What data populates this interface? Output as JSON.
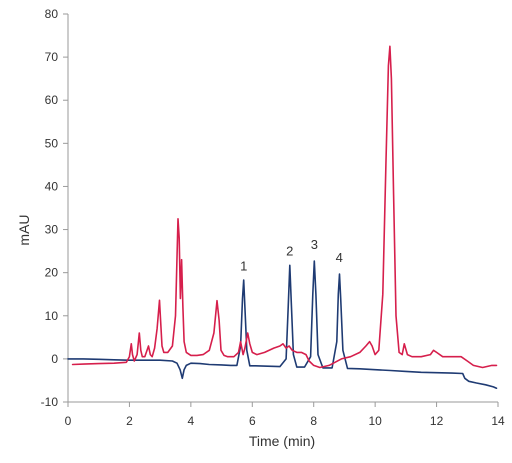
{
  "chart_data": {
    "type": "line",
    "title": "",
    "xlabel": "Time (min)",
    "ylabel": "mAU",
    "xlim": [
      0,
      14
    ],
    "ylim": [
      -10,
      80
    ],
    "x_ticks": [
      0,
      2,
      4,
      6,
      8,
      10,
      12,
      14
    ],
    "y_ticks": [
      -10,
      0,
      10,
      20,
      30,
      40,
      50,
      60,
      70,
      80
    ],
    "grid": false,
    "legend": "none",
    "annotations": [
      {
        "label": "1",
        "x": 5.72,
        "y": 20.5
      },
      {
        "label": "2",
        "x": 7.22,
        "y": 24.0
      },
      {
        "label": "3",
        "x": 8.02,
        "y": 25.5
      },
      {
        "label": "4",
        "x": 8.83,
        "y": 22.5
      }
    ],
    "series": [
      {
        "color": "#1f3b73",
        "x": [
          0,
          0.5,
          1.0,
          1.5,
          2.0,
          2.5,
          3.0,
          3.4,
          3.55,
          3.65,
          3.72,
          3.78,
          3.85,
          4.0,
          4.3,
          4.6,
          5.0,
          5.3,
          5.5,
          5.62,
          5.68,
          5.72,
          5.76,
          5.82,
          5.92,
          6.1,
          6.5,
          6.9,
          7.1,
          7.17,
          7.22,
          7.27,
          7.34,
          7.45,
          7.7,
          7.9,
          7.97,
          8.02,
          8.07,
          8.14,
          8.3,
          8.6,
          8.75,
          8.8,
          8.84,
          8.88,
          8.95,
          9.1,
          9.5,
          10.0,
          10.5,
          11.0,
          11.5,
          12.0,
          12.5,
          12.85,
          12.92,
          13.05,
          13.3,
          13.6,
          13.85,
          13.95
        ],
        "y": [
          0,
          0,
          -0.1,
          -0.2,
          -0.3,
          -0.3,
          -0.3,
          -0.5,
          -1.0,
          -2.5,
          -4.5,
          -2.5,
          -1.5,
          -1.0,
          -1.1,
          -1.3,
          -1.4,
          -1.5,
          -1.5,
          3.0,
          14.0,
          18.3,
          12.0,
          2.0,
          -1.6,
          -1.6,
          -1.7,
          -1.8,
          0.0,
          12.0,
          21.7,
          13.0,
          1.0,
          -1.9,
          -1.9,
          0.5,
          15.0,
          22.7,
          15.0,
          1.0,
          -2.1,
          -2.1,
          4.0,
          15.0,
          19.7,
          14.0,
          2.0,
          -2.2,
          -2.3,
          -2.5,
          -2.7,
          -2.9,
          -3.1,
          -3.2,
          -3.3,
          -3.4,
          -4.5,
          -5.2,
          -5.6,
          -6.0,
          -6.5,
          -6.8
        ]
      },
      {
        "color": "#d61f4c",
        "x": [
          0.15,
          0.5,
          1.0,
          1.5,
          1.9,
          2.0,
          2.06,
          2.1,
          2.16,
          2.25,
          2.32,
          2.37,
          2.42,
          2.5,
          2.62,
          2.68,
          2.74,
          2.82,
          2.9,
          2.98,
          3.0,
          3.06,
          3.12,
          3.25,
          3.4,
          3.5,
          3.58,
          3.62,
          3.66,
          3.7,
          3.74,
          3.78,
          3.85,
          4.0,
          4.2,
          4.4,
          4.6,
          4.75,
          4.85,
          4.92,
          4.98,
          5.08,
          5.2,
          5.4,
          5.55,
          5.62,
          5.7,
          5.76,
          5.85,
          5.92,
          6.0,
          6.15,
          6.4,
          6.7,
          6.9,
          7.0,
          7.1,
          7.2,
          7.3,
          7.45,
          7.6,
          7.75,
          7.85,
          8.0,
          8.2,
          8.5,
          8.9,
          9.2,
          9.5,
          9.7,
          9.82,
          9.9,
          10.0,
          10.12,
          10.25,
          10.35,
          10.43,
          10.48,
          10.53,
          10.6,
          10.68,
          10.78,
          10.88,
          10.95,
          11.05,
          11.2,
          11.5,
          11.8,
          11.9,
          12.0,
          12.2,
          12.5,
          12.8,
          13.0,
          13.2,
          13.5,
          13.8,
          13.95
        ],
        "y": [
          -1.3,
          -1.2,
          -1.1,
          -1.0,
          -0.8,
          0.5,
          3.5,
          1.0,
          -0.5,
          1.0,
          6.0,
          2.0,
          0.5,
          0.5,
          3.0,
          1.0,
          0.5,
          2.5,
          7.0,
          13.6,
          11.0,
          3.0,
          1.5,
          1.5,
          3.0,
          10.0,
          32.5,
          28.0,
          14.0,
          23.0,
          12.0,
          4.0,
          1.5,
          0.8,
          0.8,
          1.0,
          2.0,
          6.0,
          13.5,
          9.0,
          2.0,
          0.8,
          0.5,
          0.5,
          1.5,
          4.0,
          1.0,
          2.5,
          6.0,
          3.5,
          1.5,
          1.0,
          1.5,
          2.5,
          3.0,
          3.5,
          2.5,
          3.0,
          2.0,
          1.5,
          1.5,
          1.0,
          -0.5,
          -1.5,
          -2.0,
          -1.5,
          0.0,
          0.5,
          1.5,
          3.0,
          4.0,
          3.0,
          1.0,
          2.0,
          15.0,
          45.0,
          68.0,
          72.5,
          65.0,
          38.0,
          10.0,
          1.5,
          1.0,
          3.5,
          1.0,
          0.5,
          0.5,
          1.0,
          2.0,
          1.5,
          0.5,
          0.5,
          0.5,
          -0.5,
          -1.5,
          -2.0,
          -1.5,
          -1.5
        ]
      }
    ]
  }
}
